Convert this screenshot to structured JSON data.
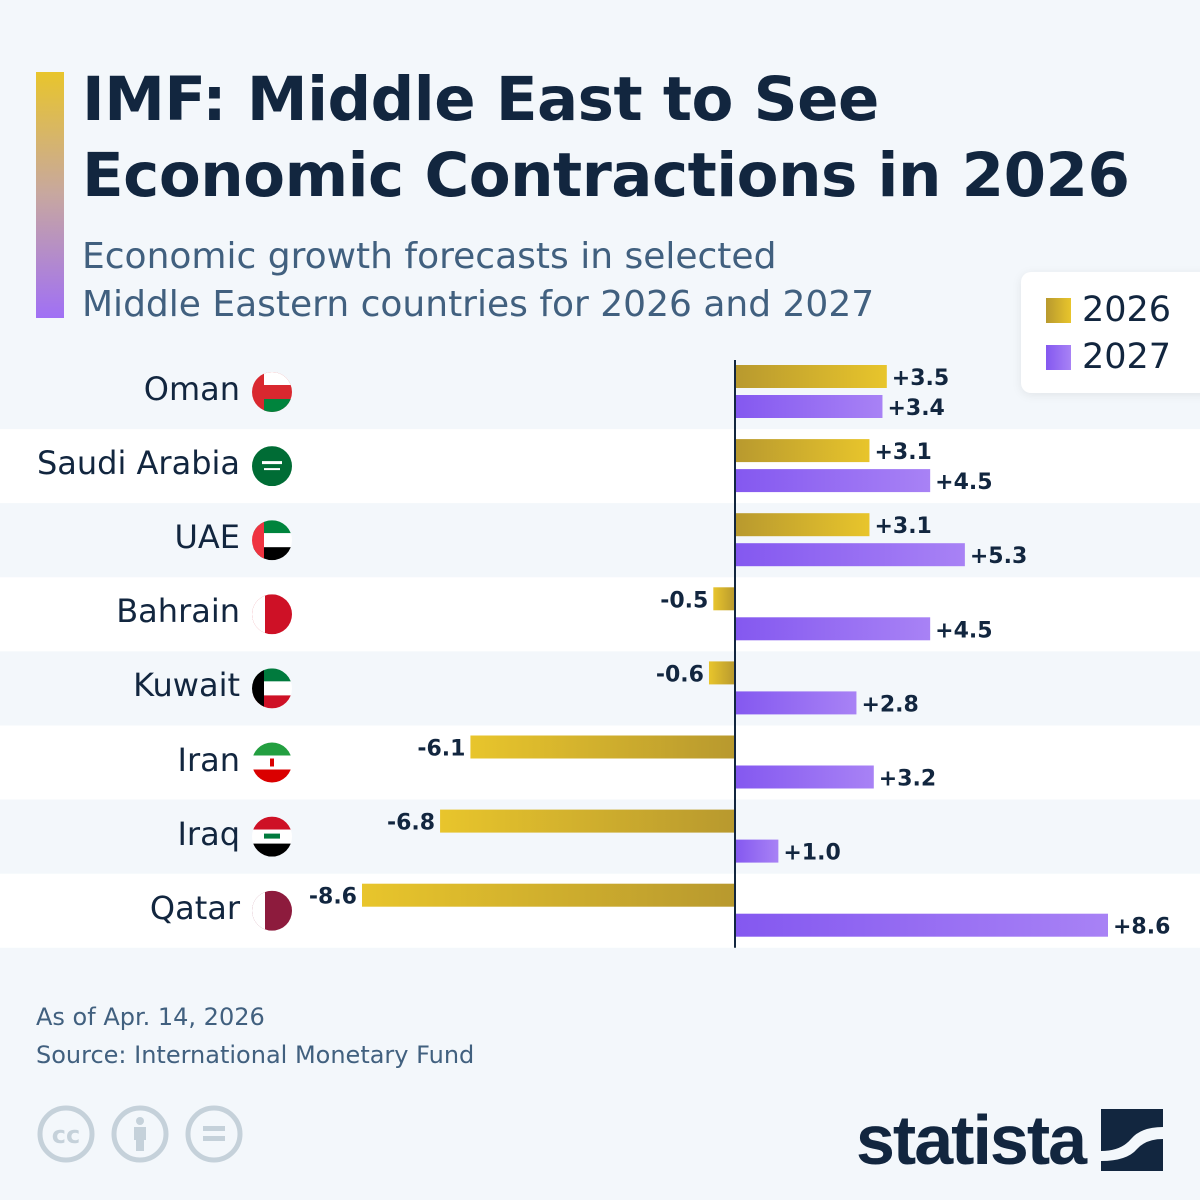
{
  "header": {
    "title_line1": "IMF: Middle East to See",
    "title_line2": "Economic Contractions in 2026",
    "subtitle_line1": "Economic growth forecasts in selected",
    "subtitle_line2": "Middle Eastern countries for 2026 and 2027"
  },
  "chart_data": {
    "type": "bar",
    "orientation": "horizontal",
    "categories": [
      "Oman",
      "Saudi Arabia",
      "UAE",
      "Bahrain",
      "Kuwait",
      "Iran",
      "Iraq",
      "Qatar"
    ],
    "series": [
      {
        "name": "2026",
        "values": [
          3.5,
          3.1,
          3.1,
          -0.5,
          -0.6,
          -6.1,
          -6.8,
          -8.6
        ],
        "labels": [
          "+3.5",
          "+3.1",
          "+3.1",
          "-0.5",
          "-0.6",
          "-6.1",
          "-6.8",
          "-8.6"
        ],
        "color_start": "#b8992e",
        "color_end": "#e8c52c"
      },
      {
        "name": "2027",
        "values": [
          3.4,
          4.5,
          5.3,
          4.5,
          2.8,
          3.2,
          1.0,
          8.6
        ],
        "labels": [
          "+3.4",
          "+4.5",
          "+5.3",
          "+4.5",
          "+2.8",
          "+3.2",
          "+1.0",
          "+8.6"
        ],
        "color_start": "#8458f0",
        "color_end": "#a882f5"
      }
    ],
    "xlim": [
      -8.6,
      8.6
    ],
    "grid": false,
    "legend": "top-right"
  },
  "footer": {
    "date": "As of Apr. 14, 2026",
    "source": "Source: International Monetary Fund",
    "brand": "statista"
  }
}
